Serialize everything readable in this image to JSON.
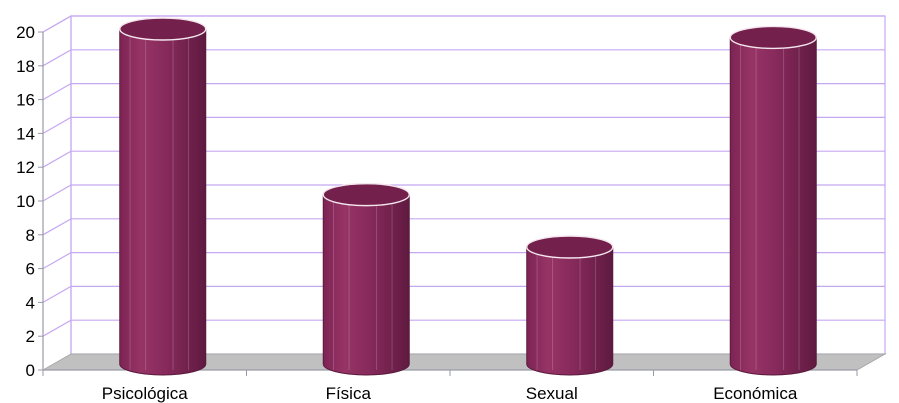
{
  "chart_data": {
    "type": "bar",
    "categories": [
      "Psicológica",
      "Física",
      "Sexual",
      "Económica"
    ],
    "values": [
      20,
      10.2,
      7.1,
      19.5
    ],
    "title": "",
    "xlabel": "",
    "ylabel": "",
    "ylim": [
      0,
      20
    ],
    "yticks": [
      "0",
      "2",
      "4",
      "6",
      "8",
      "10",
      "12",
      "14",
      "16",
      "18",
      "20"
    ],
    "grid": true,
    "legend": "none",
    "style": "3d-cylinder"
  },
  "colors": {
    "bar": "#8b2b5e",
    "bar_dark": "#6e1f4a",
    "bar_top": "#7a2350",
    "gridline": "#c6a8f2",
    "floor": "#c0c0c0",
    "axis": "#9a9aa8"
  }
}
